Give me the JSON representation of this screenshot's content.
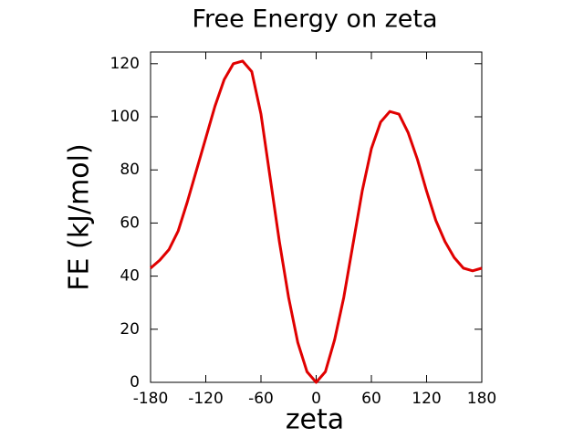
{
  "chart_data": {
    "type": "line",
    "title": "Free Energy on zeta",
    "x_label": "zeta",
    "y_label": "FE (kJ/mol)",
    "x": [
      -180,
      -170,
      -160,
      -150,
      -140,
      -130,
      -120,
      -110,
      -100,
      -90,
      -80,
      -70,
      -60,
      -50,
      -40,
      -30,
      -20,
      -10,
      0,
      10,
      20,
      30,
      40,
      50,
      60,
      70,
      80,
      90,
      100,
      110,
      120,
      130,
      140,
      150,
      160,
      170,
      180
    ],
    "series": [
      {
        "name": "FE",
        "color": "#e00000",
        "values": [
          43,
          46,
          50,
          57,
          68,
          80,
          92,
          104,
          114,
          120,
          121,
          117,
          101,
          77,
          53,
          32,
          15,
          4,
          0,
          4,
          16,
          32,
          52,
          72,
          88,
          98,
          102,
          101,
          94,
          84,
          72,
          61,
          53,
          47,
          43,
          42,
          43
        ]
      }
    ],
    "xlim": [
      -180,
      180
    ],
    "xticks": [
      -180,
      -120,
      -60,
      0,
      60,
      120,
      180
    ],
    "ylim": [
      0,
      124.4
    ],
    "yticks": [
      0,
      20,
      40,
      60,
      80,
      100,
      120
    ]
  }
}
